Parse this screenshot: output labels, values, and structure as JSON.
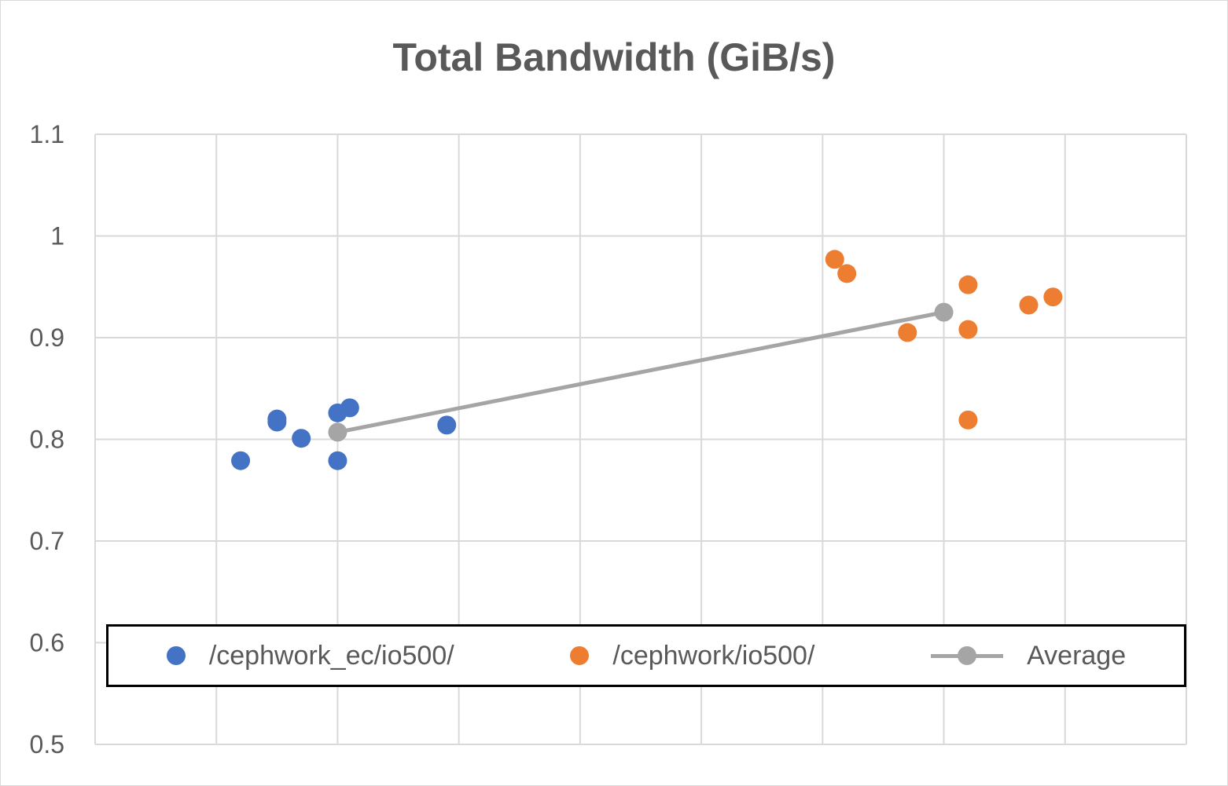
{
  "chart_data": {
    "type": "scatter",
    "title": "Total Bandwidth (GiB/s)",
    "xlim": [
      0,
      9
    ],
    "ylim": [
      0.5,
      1.1
    ],
    "yticks": [
      "0.5",
      "0.6",
      "0.7",
      "0.8",
      "0.9",
      "1",
      "1.1"
    ],
    "grid": true,
    "legend_position": "bottom-inside",
    "series": [
      {
        "name": "/cephwork_ec/io500/",
        "color": "#4472c4",
        "mode": "markers",
        "points": [
          [
            1.2,
            0.779
          ],
          [
            1.5,
            0.82
          ],
          [
            1.5,
            0.817
          ],
          [
            1.7,
            0.801
          ],
          [
            2.0,
            0.826
          ],
          [
            2.1,
            0.831
          ],
          [
            2.0,
            0.779
          ],
          [
            2.9,
            0.814
          ]
        ]
      },
      {
        "name": "/cephwork/io500/",
        "color": "#ed7d31",
        "mode": "markers",
        "points": [
          [
            6.1,
            0.977
          ],
          [
            6.2,
            0.963
          ],
          [
            6.7,
            0.905
          ],
          [
            7.2,
            0.952
          ],
          [
            7.2,
            0.908
          ],
          [
            7.2,
            0.819
          ],
          [
            7.7,
            0.932
          ],
          [
            7.9,
            0.94
          ]
        ]
      },
      {
        "name": "Average",
        "color": "#a5a5a5",
        "mode": "lines+markers",
        "points": [
          [
            2,
            0.807
          ],
          [
            7,
            0.925
          ]
        ]
      }
    ]
  }
}
